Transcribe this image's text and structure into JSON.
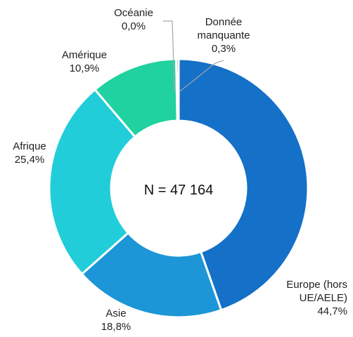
{
  "chart_data": {
    "type": "pie",
    "donut": true,
    "center_label": "N = 47 164",
    "slices": [
      {
        "label_lines": [
          "Europe (hors",
          "UE/AELE)"
        ],
        "value_text": "44,7%",
        "value": 44.7,
        "color": "#1570C7"
      },
      {
        "label_lines": [
          "Asie"
        ],
        "value_text": "18,8%",
        "value": 18.8,
        "color": "#1C96D6"
      },
      {
        "label_lines": [
          "Afrique"
        ],
        "value_text": "25,4%",
        "value": 25.4,
        "color": "#20CDD9"
      },
      {
        "label_lines": [
          "Amérique"
        ],
        "value_text": "10,9%",
        "value": 10.9,
        "color": "#1FD29F"
      },
      {
        "label_lines": [
          "Océanie"
        ],
        "value_text": "0,0%",
        "value": 0.0,
        "color": "#A9D08E"
      },
      {
        "label_lines": [
          "Donnée",
          "manquante"
        ],
        "value_text": "0,3%",
        "value": 0.3,
        "color": "#6E6E6E"
      }
    ]
  }
}
